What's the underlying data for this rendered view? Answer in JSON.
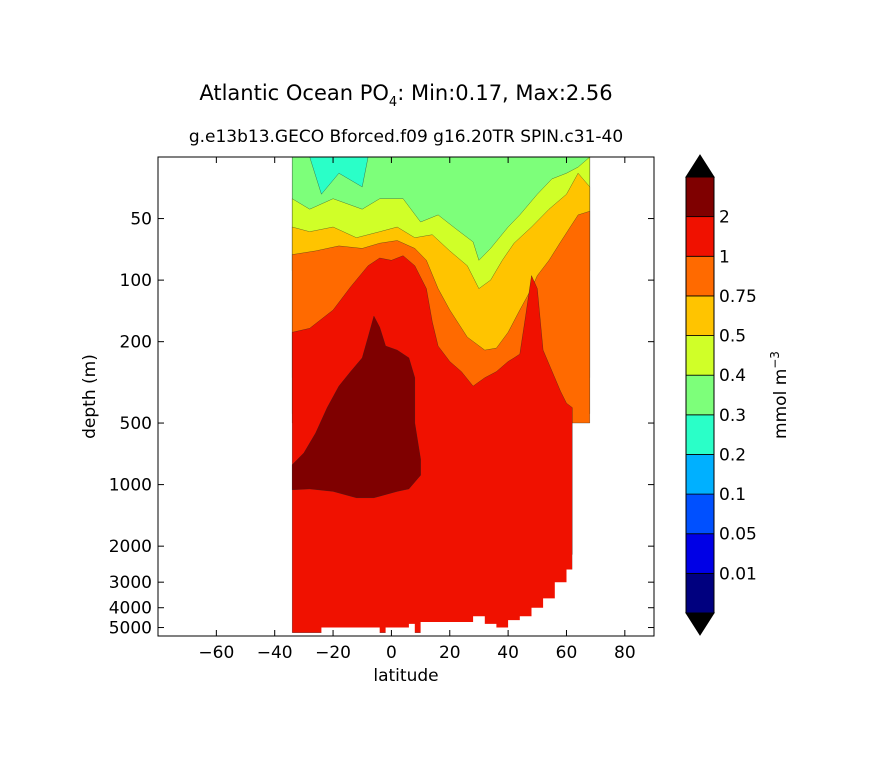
{
  "chart_data": {
    "type": "filled-contour",
    "title_main": "Atlantic Ocean PO",
    "title_sub_script": "4",
    "title_rest": ": Min:0.17, Max:2.56",
    "subtitle": "g.e13b13.GECO Bforced.f09 g16.20TR SPIN.c31-40",
    "xlabel": "latitude",
    "ylabel": "depth (m)",
    "xlim": [
      -80,
      90
    ],
    "ylim": [
      5500,
      25
    ],
    "x_ticks": [
      {
        "value": -60,
        "label": "−60"
      },
      {
        "value": -40,
        "label": "−40"
      },
      {
        "value": -20,
        "label": "−20"
      },
      {
        "value": 0,
        "label": "0"
      },
      {
        "value": 20,
        "label": "20"
      },
      {
        "value": 40,
        "label": "40"
      },
      {
        "value": 60,
        "label": "60"
      },
      {
        "value": 80,
        "label": "80"
      }
    ],
    "y_ticks": [
      {
        "value": 50,
        "label": "50"
      },
      {
        "value": 100,
        "label": "100"
      },
      {
        "value": 200,
        "label": "200"
      },
      {
        "value": 500,
        "label": "500"
      },
      {
        "value": 1000,
        "label": "1000"
      },
      {
        "value": 2000,
        "label": "2000"
      },
      {
        "value": 3000,
        "label": "3000"
      },
      {
        "value": 4000,
        "label": "4000"
      },
      {
        "value": 5000,
        "label": "5000"
      }
    ],
    "colorbar": {
      "label": "mmol m",
      "label_exp": "−3",
      "levels": [
        {
          "label": "0.01",
          "color": "#00007f"
        },
        {
          "label": "0.05",
          "color": "#0000e6"
        },
        {
          "label": "0.1",
          "color": "#0050ff"
        },
        {
          "label": "0.2",
          "color": "#00b0ff"
        },
        {
          "label": "0.3",
          "color": "#2affc8"
        },
        {
          "label": "0.4",
          "color": "#7dff7a"
        },
        {
          "label": "0.5",
          "color": "#d0ff28"
        },
        {
          "label": "0.75",
          "color": "#ffc400"
        },
        {
          "label": "1",
          "color": "#ff6a00"
        },
        {
          "label": "2",
          "color": "#f01100"
        },
        {
          "label": "",
          "color": "#7f0000"
        }
      ],
      "extend_low_color": "#000000",
      "extend_high_color": "#000000"
    },
    "regions": [
      {
        "band": "0.2-0.3",
        "color": "#2affc8",
        "points": [
          [
            -34,
            25
          ],
          [
            68,
            25
          ],
          [
            68,
            90
          ],
          [
            -34,
            90
          ]
        ]
      },
      {
        "band": "0.3-0.4",
        "color": "#7dff7a",
        "points": [
          [
            -34,
            25
          ],
          [
            -28,
            25
          ],
          [
            -24,
            38
          ],
          [
            -18,
            30
          ],
          [
            -10,
            35
          ],
          [
            -8,
            25
          ],
          [
            68,
            25
          ],
          [
            68,
            90
          ],
          [
            -34,
            90
          ]
        ]
      },
      {
        "band": "0.4-0.5",
        "color": "#d0ff28",
        "points": [
          [
            -34,
            40
          ],
          [
            -28,
            45
          ],
          [
            -20,
            40
          ],
          [
            -10,
            45
          ],
          [
            -4,
            40
          ],
          [
            4,
            40
          ],
          [
            10,
            52
          ],
          [
            16,
            48
          ],
          [
            22,
            56
          ],
          [
            28,
            65
          ],
          [
            30,
            80
          ],
          [
            34,
            70
          ],
          [
            40,
            55
          ],
          [
            44,
            48
          ],
          [
            50,
            38
          ],
          [
            55,
            32
          ],
          [
            60,
            30
          ],
          [
            64,
            28
          ],
          [
            68,
            25
          ],
          [
            68,
            300
          ],
          [
            -34,
            300
          ]
        ]
      },
      {
        "band": "0.5-0.75",
        "color": "#ffc400",
        "points": [
          [
            -34,
            55
          ],
          [
            -28,
            58
          ],
          [
            -20,
            55
          ],
          [
            -12,
            62
          ],
          [
            -4,
            58
          ],
          [
            2,
            55
          ],
          [
            8,
            62
          ],
          [
            14,
            60
          ],
          [
            20,
            72
          ],
          [
            26,
            85
          ],
          [
            30,
            110
          ],
          [
            34,
            100
          ],
          [
            38,
            80
          ],
          [
            42,
            66
          ],
          [
            48,
            55
          ],
          [
            54,
            45
          ],
          [
            60,
            38
          ],
          [
            64,
            30
          ],
          [
            68,
            35
          ],
          [
            68,
            450
          ],
          [
            -34,
            450
          ]
        ]
      },
      {
        "band": "0.75-1",
        "color": "#ff6a00",
        "points": [
          [
            -34,
            75
          ],
          [
            -26,
            72
          ],
          [
            -18,
            68
          ],
          [
            -10,
            70
          ],
          [
            -4,
            66
          ],
          [
            2,
            64
          ],
          [
            8,
            70
          ],
          [
            12,
            80
          ],
          [
            16,
            110
          ],
          [
            20,
            140
          ],
          [
            26,
            190
          ],
          [
            32,
            220
          ],
          [
            36,
            215
          ],
          [
            40,
            180
          ],
          [
            44,
            140
          ],
          [
            48,
            110
          ],
          [
            50,
            95
          ],
          [
            54,
            80
          ],
          [
            58,
            65
          ],
          [
            64,
            48
          ],
          [
            68,
            46
          ],
          [
            68,
            500
          ],
          [
            -34,
            500
          ]
        ]
      },
      {
        "band": "1-2",
        "color": "#f01100",
        "points": [
          [
            -34,
            180
          ],
          [
            -28,
            172
          ],
          [
            -20,
            140
          ],
          [
            -14,
            108
          ],
          [
            -8,
            85
          ],
          [
            -4,
            78
          ],
          [
            0,
            80
          ],
          [
            4,
            76
          ],
          [
            8,
            85
          ],
          [
            12,
            110
          ],
          [
            14,
            160
          ],
          [
            16,
            210
          ],
          [
            20,
            250
          ],
          [
            24,
            280
          ],
          [
            28,
            330
          ],
          [
            32,
            300
          ],
          [
            36,
            280
          ],
          [
            40,
            250
          ],
          [
            42,
            240
          ],
          [
            44,
            230
          ],
          [
            46,
            150
          ],
          [
            48,
            95
          ],
          [
            50,
            110
          ],
          [
            52,
            220
          ],
          [
            56,
            300
          ],
          [
            58,
            350
          ],
          [
            60,
            400
          ],
          [
            62,
            420
          ],
          [
            62,
            5300
          ],
          [
            -34,
            5300
          ]
        ]
      },
      {
        "band": ">2",
        "color": "#7f0000",
        "points": [
          [
            -34,
            800
          ],
          [
            -30,
            700
          ],
          [
            -26,
            560
          ],
          [
            -22,
            420
          ],
          [
            -18,
            330
          ],
          [
            -14,
            280
          ],
          [
            -10,
            240
          ],
          [
            -8,
            190
          ],
          [
            -6,
            150
          ],
          [
            -4,
            170
          ],
          [
            -2,
            210
          ],
          [
            2,
            220
          ],
          [
            6,
            240
          ],
          [
            8,
            300
          ],
          [
            8,
            500
          ],
          [
            10,
            750
          ],
          [
            10,
            900
          ],
          [
            6,
            1050
          ],
          [
            2,
            1080
          ],
          [
            -6,
            1160
          ],
          [
            -12,
            1160
          ],
          [
            -20,
            1080
          ],
          [
            -28,
            1050
          ],
          [
            -34,
            1060
          ]
        ]
      }
    ],
    "bottom_cut": [
      [
        -34,
        5600
      ],
      [
        -34,
        5300
      ],
      [
        -32,
        5500
      ],
      [
        -24,
        5500
      ],
      [
        -24,
        5000
      ],
      [
        -4,
        5000
      ],
      [
        -4,
        5500
      ],
      [
        -2,
        5500
      ],
      [
        -2,
        5000
      ],
      [
        6,
        5000
      ],
      [
        6,
        4800
      ],
      [
        8,
        4800
      ],
      [
        8,
        5500
      ],
      [
        10,
        5500
      ],
      [
        10,
        4700
      ],
      [
        28,
        4700
      ],
      [
        28,
        4400
      ],
      [
        32,
        4400
      ],
      [
        32,
        4800
      ],
      [
        36,
        4800
      ],
      [
        36,
        5000
      ],
      [
        40,
        5000
      ],
      [
        40,
        4600
      ],
      [
        44,
        4600
      ],
      [
        44,
        4400
      ],
      [
        48,
        4400
      ],
      [
        48,
        4000
      ],
      [
        52,
        4000
      ],
      [
        52,
        3600
      ],
      [
        56,
        3600
      ],
      [
        56,
        3000
      ],
      [
        60,
        3000
      ],
      [
        60,
        2600
      ],
      [
        62,
        2600
      ],
      [
        62,
        2200
      ],
      [
        64,
        2200
      ],
      [
        64,
        1500
      ],
      [
        66,
        1500
      ],
      [
        66,
        600
      ],
      [
        68,
        600
      ],
      [
        68,
        5600
      ]
    ]
  }
}
